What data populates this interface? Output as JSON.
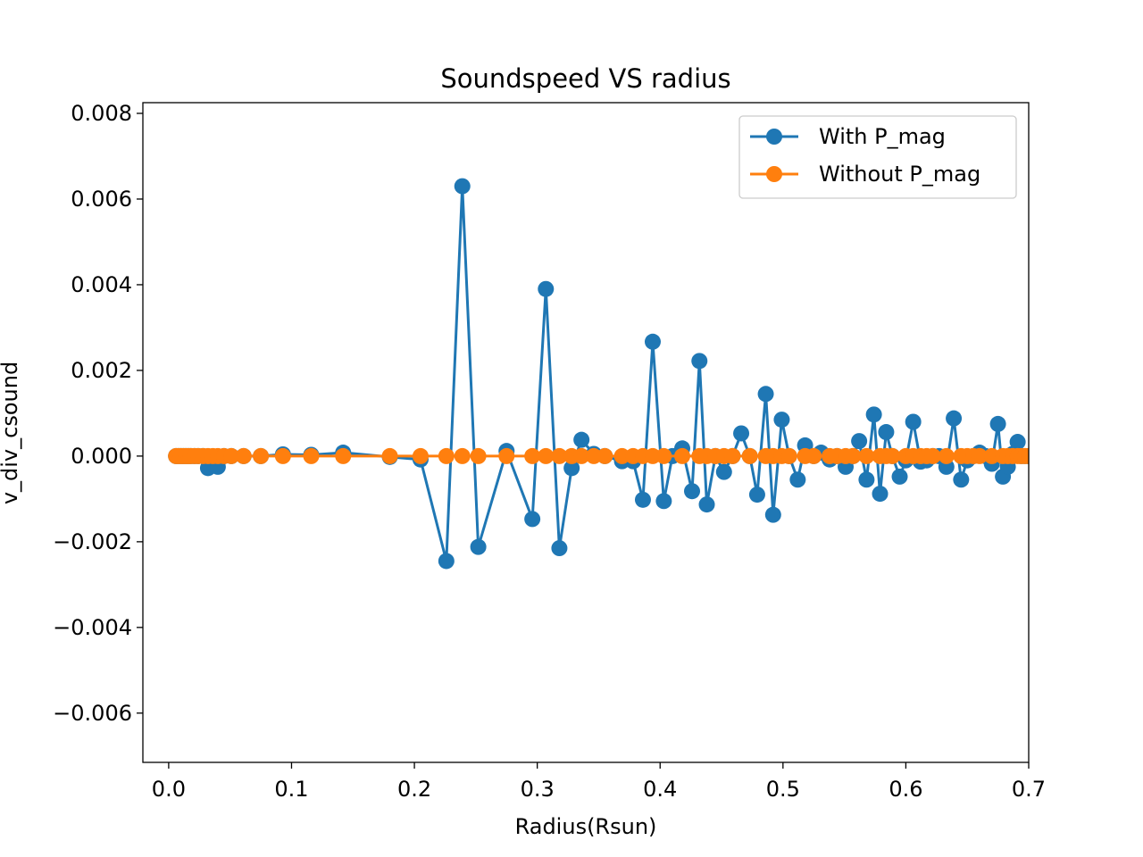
{
  "chart_data": {
    "type": "line",
    "title": "Soundspeed VS radius",
    "xlabel": "Radius(Rsun)",
    "ylabel": "v_div_csound",
    "xlim": [
      -0.021,
      0.7
    ],
    "ylim": [
      -0.00715,
      0.00825
    ],
    "xticks": [
      0.0,
      0.1,
      0.2,
      0.3,
      0.4,
      0.5,
      0.6,
      0.7
    ],
    "xtick_labels": [
      "0.0",
      "0.1",
      "0.2",
      "0.3",
      "0.4",
      "0.5",
      "0.6",
      "0.7"
    ],
    "yticks": [
      -0.006,
      -0.004,
      -0.002,
      0.0,
      0.002,
      0.004,
      0.006,
      0.008
    ],
    "ytick_labels": [
      "−0.006",
      "−0.004",
      "−0.002",
      "0.000",
      "0.002",
      "0.004",
      "0.006",
      "0.008"
    ],
    "grid": false,
    "legend_position": "top-right",
    "series": [
      {
        "name": "With P_mag",
        "color": "#1f77b4",
        "marker": "circle",
        "x": [
          0.006,
          0.008,
          0.01,
          0.012,
          0.014,
          0.016,
          0.018,
          0.021,
          0.024,
          0.028,
          0.032,
          0.036,
          0.04,
          0.045,
          0.051,
          0.061,
          0.075,
          0.093,
          0.116,
          0.142,
          0.18,
          0.205,
          0.226,
          0.239,
          0.252,
          0.275,
          0.296,
          0.307,
          0.318,
          0.328,
          0.336,
          0.346,
          0.355,
          0.369,
          0.378,
          0.386,
          0.394,
          0.403,
          0.41,
          0.418,
          0.426,
          0.432,
          0.438,
          0.445,
          0.452,
          0.459,
          0.466,
          0.473,
          0.479,
          0.486,
          0.492,
          0.499,
          0.505,
          0.512,
          0.518,
          0.525,
          0.531,
          0.538,
          0.544,
          0.551,
          0.557,
          0.562,
          0.568,
          0.574,
          0.579,
          0.584,
          0.589,
          0.595,
          0.6,
          0.606,
          0.612,
          0.617,
          0.622,
          0.627,
          0.633,
          0.639,
          0.645,
          0.65,
          0.655,
          0.66,
          0.665,
          0.67,
          0.675,
          0.679,
          0.683,
          0.687,
          0.691,
          0.694,
          0.697,
          0.7
        ],
        "values": [
          0.0,
          0.0,
          0.0,
          0.0,
          0.0,
          0.0,
          0.0,
          0.0,
          0.0,
          0.0,
          -0.00028,
          -0.0002,
          -0.00025,
          0.0,
          0.0,
          0.0,
          0.0,
          4e-05,
          3e-05,
          8e-05,
          -2e-05,
          -8e-05,
          -0.00245,
          0.0063,
          -0.00212,
          0.00012,
          -0.00147,
          0.0039,
          -0.00215,
          -0.00028,
          0.00038,
          5e-05,
          0.0,
          -0.00012,
          -0.00012,
          -0.00102,
          0.00267,
          -0.00105,
          0.0,
          0.00018,
          -0.00082,
          0.00222,
          -0.00113,
          0.0,
          -0.00037,
          0.0,
          0.00053,
          0.0,
          -0.0009,
          0.00145,
          -0.00137,
          0.00085,
          0.0,
          -0.00055,
          0.00025,
          0.0,
          8e-05,
          -8e-05,
          0.0,
          -0.00025,
          0.0,
          0.00035,
          -0.00055,
          0.00097,
          -0.00088,
          0.00056,
          0.0,
          -0.00048,
          -0.0001,
          0.0008,
          -0.00013,
          -0.0001,
          0.0,
          0.0,
          -0.00025,
          0.00088,
          -0.00055,
          -0.0001,
          0.0,
          8e-05,
          0.0,
          -0.00018,
          0.00075,
          -0.00048,
          -0.00025,
          5e-05,
          0.00033,
          0.0,
          0.0,
          0.0
        ]
      },
      {
        "name": "Without P_mag",
        "color": "#ff7f0e",
        "marker": "circle",
        "x": [
          0.006,
          0.008,
          0.01,
          0.012,
          0.014,
          0.016,
          0.018,
          0.021,
          0.024,
          0.028,
          0.032,
          0.036,
          0.04,
          0.045,
          0.051,
          0.061,
          0.075,
          0.093,
          0.116,
          0.142,
          0.18,
          0.205,
          0.226,
          0.239,
          0.252,
          0.275,
          0.296,
          0.307,
          0.318,
          0.328,
          0.336,
          0.346,
          0.355,
          0.369,
          0.378,
          0.386,
          0.394,
          0.403,
          0.418,
          0.432,
          0.438,
          0.445,
          0.452,
          0.459,
          0.473,
          0.486,
          0.492,
          0.499,
          0.505,
          0.518,
          0.525,
          0.538,
          0.544,
          0.551,
          0.557,
          0.568,
          0.579,
          0.584,
          0.589,
          0.6,
          0.606,
          0.612,
          0.617,
          0.622,
          0.633,
          0.645,
          0.65,
          0.655,
          0.66,
          0.67,
          0.679,
          0.683,
          0.687,
          0.691,
          0.694,
          0.697,
          0.7
        ],
        "values": [
          0.0,
          0.0,
          0.0,
          0.0,
          0.0,
          0.0,
          0.0,
          0.0,
          0.0,
          0.0,
          0.0,
          0.0,
          0.0,
          0.0,
          0.0,
          0.0,
          0.0,
          0.0,
          0.0,
          0.0,
          0.0,
          0.0,
          0.0,
          0.0,
          0.0,
          0.0,
          0.0,
          0.0,
          0.0,
          0.0,
          0.0,
          0.0,
          0.0,
          0.0,
          0.0,
          0.0,
          0.0,
          0.0,
          0.0,
          0.0,
          0.0,
          0.0,
          0.0,
          0.0,
          0.0,
          0.0,
          0.0,
          0.0,
          0.0,
          0.0,
          0.0,
          0.0,
          0.0,
          0.0,
          0.0,
          0.0,
          0.0,
          0.0,
          0.0,
          0.0,
          0.0,
          0.0,
          0.0,
          0.0,
          0.0,
          0.0,
          0.0,
          0.0,
          0.0,
          0.0,
          0.0,
          0.0,
          0.0,
          0.0,
          0.0,
          0.0,
          0.0
        ]
      }
    ]
  }
}
